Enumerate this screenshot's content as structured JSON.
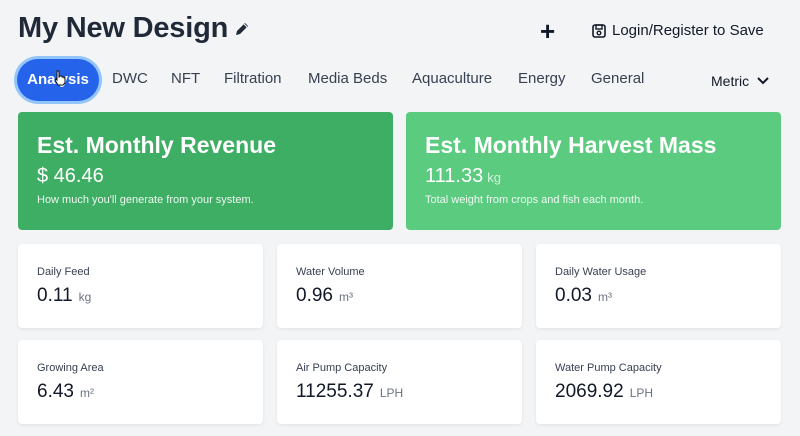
{
  "header": {
    "title": "My New Design",
    "add_label": "+",
    "login_label": "Login/Register to Save"
  },
  "tabs": [
    {
      "label": "Analysis",
      "active": true
    },
    {
      "label": "DWC"
    },
    {
      "label": "NFT"
    },
    {
      "label": "Filtration"
    },
    {
      "label": "Media Beds"
    },
    {
      "label": "Aquaculture"
    },
    {
      "label": "Energy"
    },
    {
      "label": "General"
    }
  ],
  "unit_system": "Metric",
  "summary": {
    "revenue": {
      "title": "Est. Monthly Revenue",
      "value": "$ 46.46",
      "unit": "",
      "description": "How much you'll generate from your system."
    },
    "harvest": {
      "title": "Est. Monthly Harvest Mass",
      "value": "111.33",
      "unit": "kg",
      "description": "Total weight from crops and fish each month."
    }
  },
  "stats": [
    {
      "label": "Daily Feed",
      "value": "0.11",
      "unit": "kg"
    },
    {
      "label": "Water Volume",
      "value": "0.96",
      "unit": "m³"
    },
    {
      "label": "Daily Water Usage",
      "value": "0.03",
      "unit": "m³"
    },
    {
      "label": "Growing Area",
      "value": "6.43",
      "unit": "m²"
    },
    {
      "label": "Air Pump Capacity",
      "value": "11255.37",
      "unit": "LPH"
    },
    {
      "label": "Water Pump Capacity",
      "value": "2069.92",
      "unit": "LPH"
    }
  ],
  "colors": {
    "accent": "#2563eb",
    "revenue_card": "#3fae65",
    "harvest_card": "#5acb7f"
  }
}
